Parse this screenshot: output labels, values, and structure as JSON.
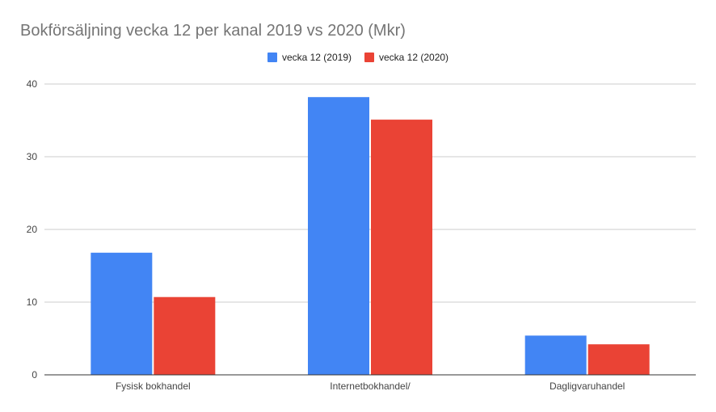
{
  "chart_data": {
    "type": "bar",
    "title": "Bokförsäljning vecka 12 per kanal 2019 vs 2020 (Mkr)",
    "categories": [
      "Fysisk bokhandel",
      "Internetbokhandel/",
      "Dagligvaruhandel"
    ],
    "series": [
      {
        "name": "vecka 12 (2019)",
        "values": [
          16.8,
          38.2,
          5.4
        ],
        "color": "#4285f4"
      },
      {
        "name": "vecka 12 (2020)",
        "values": [
          10.7,
          35.1,
          4.2
        ],
        "color": "#ea4335"
      }
    ],
    "xlabel": "",
    "ylabel": "",
    "ylim": [
      0,
      40
    ],
    "yticks": [
      0,
      10,
      20,
      30,
      40
    ],
    "grid": true,
    "legend_position": "top"
  }
}
